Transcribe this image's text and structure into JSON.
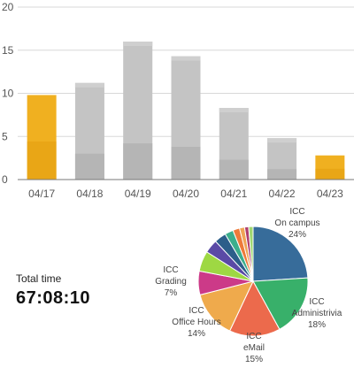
{
  "summary": {
    "total_label": "Total time",
    "total_value": "67:08:10"
  },
  "chart_data": [
    {
      "type": "bar",
      "categories": [
        "04/17",
        "04/18",
        "04/19",
        "04/20",
        "04/21",
        "04/22",
        "04/23"
      ],
      "series": [
        {
          "values": [
            9.8,
            11.2,
            16.0,
            14.3,
            8.3,
            4.8,
            2.8
          ]
        }
      ],
      "inner_shade_values": [
        null,
        3.0,
        4.2,
        3.8,
        2.3,
        1.2,
        null
      ],
      "highlighted_categories": [
        "04/17",
        "04/23"
      ],
      "ylim": [
        0,
        20
      ],
      "yticks": [
        0,
        5,
        10,
        15,
        20
      ],
      "grid": true,
      "colors": {
        "highlight": "#f0b020",
        "highlight_dark": "#e4a010",
        "normal": "#c4c4c4",
        "normal_light": "#cfcfcf",
        "normal_dark": "#b5b5b5",
        "grid": "#d8d8d8",
        "axis": "#777777"
      }
    },
    {
      "type": "pie",
      "slices": [
        {
          "lines": [
            "ICC",
            "On campus",
            "24%"
          ],
          "value": 24,
          "color": "#376c9a"
        },
        {
          "lines": [
            "ICC",
            "Administrivia",
            "18%"
          ],
          "value": 18,
          "color": "#38b06a"
        },
        {
          "lines": [
            "ICC",
            "eMail",
            "15%"
          ],
          "value": 15,
          "color": "#ec6a4c"
        },
        {
          "lines": [
            "ICC",
            "Office Hours",
            "14%"
          ],
          "value": 14,
          "color": "#efaa4c"
        },
        {
          "lines": [
            "ICC",
            "Grading",
            "7%"
          ],
          "value": 7,
          "color": "#cc3a88"
        },
        {
          "lines": [],
          "value": 6,
          "color": "#9ed843"
        },
        {
          "lines": [],
          "value": 4,
          "color": "#5a4aa6"
        },
        {
          "lines": [],
          "value": 3.5,
          "color": "#2c5e8a"
        },
        {
          "lines": [],
          "value": 2.5,
          "color": "#3cae8c"
        },
        {
          "lines": [],
          "value": 2,
          "color": "#ee7a3a"
        },
        {
          "lines": [],
          "value": 1.5,
          "color": "#f0a456"
        },
        {
          "lines": [],
          "value": 1.2,
          "color": "#b03e6e"
        },
        {
          "lines": [],
          "value": 1.3,
          "color": "#9fd870"
        }
      ]
    }
  ]
}
